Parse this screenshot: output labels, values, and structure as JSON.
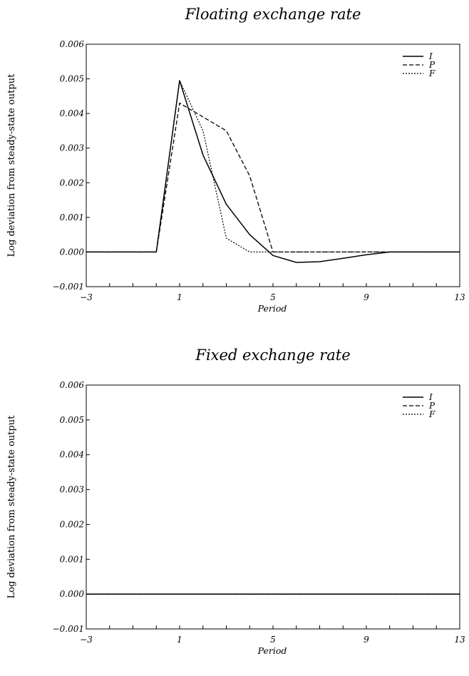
{
  "chart_data": [
    {
      "type": "line",
      "title": "Floating exchange rate",
      "xlabel": "Period",
      "ylabel": "Log deviation  from steady-state output",
      "xlim": [
        -3,
        13
      ],
      "ylim": [
        -0.001,
        0.006
      ],
      "x_ticklabels": [
        "−3",
        "1",
        "5",
        "9",
        "13"
      ],
      "y_ticklabels": [
        "−0.001",
        "0.000",
        "0.001",
        "0.002",
        "0.003",
        "0.004",
        "0.005",
        "0.006"
      ],
      "legend_position": "top-right",
      "x": [
        -3,
        -2,
        -1,
        0,
        1,
        2,
        3,
        4,
        5,
        6,
        7,
        8,
        9,
        10,
        11,
        12,
        13
      ],
      "series": [
        {
          "name": "I",
          "style": "solid",
          "values": [
            0,
            0,
            0,
            0,
            0.00495,
            0.0028,
            0.00138,
            0.0005,
            -0.0001,
            -0.0003,
            -0.00028,
            -0.00018,
            -8e-05,
            0,
            0,
            0,
            0
          ]
        },
        {
          "name": "P",
          "style": "dashed",
          "values": [
            0,
            0,
            0,
            0,
            0.0043,
            0.0039,
            0.0035,
            0.0022,
            0,
            0,
            0,
            0,
            0,
            0,
            0,
            0,
            0
          ]
        },
        {
          "name": "F",
          "style": "dotted",
          "values": [
            0,
            0,
            0,
            0,
            0.00495,
            0.0035,
            0.0004,
            0,
            0,
            0,
            0,
            0,
            0,
            0,
            0,
            0,
            0
          ]
        }
      ]
    },
    {
      "type": "line",
      "title": "Fixed exchange rate",
      "xlabel": "Period",
      "ylabel": "Log deviation  from steady-state output",
      "xlim": [
        -3,
        13
      ],
      "ylim": [
        -0.001,
        0.006
      ],
      "x_ticklabels": [
        "−3",
        "1",
        "5",
        "9",
        "13"
      ],
      "y_ticklabels": [
        "−0.001",
        "0.000",
        "0.001",
        "0.002",
        "0.003",
        "0.004",
        "0.005",
        "0.006"
      ],
      "legend_position": "top-right",
      "x": [
        -3,
        -2,
        -1,
        0,
        1,
        2,
        3,
        4,
        5,
        6,
        7,
        8,
        9,
        10,
        11,
        12,
        13
      ],
      "series": [
        {
          "name": "I",
          "style": "solid",
          "values": [
            0,
            0,
            0,
            0,
            0,
            0,
            0,
            0,
            0,
            0,
            0,
            0,
            0,
            0,
            0,
            0,
            0
          ]
        },
        {
          "name": "P",
          "style": "dashed",
          "values": [
            0,
            0,
            0,
            0,
            0,
            0,
            0,
            0,
            0,
            0,
            0,
            0,
            0,
            0,
            0,
            0,
            0
          ]
        },
        {
          "name": "F",
          "style": "dotted",
          "values": [
            0,
            0,
            0,
            0,
            0,
            0,
            0,
            0,
            0,
            0,
            0,
            0,
            0,
            0,
            0,
            0,
            0
          ]
        }
      ]
    }
  ]
}
